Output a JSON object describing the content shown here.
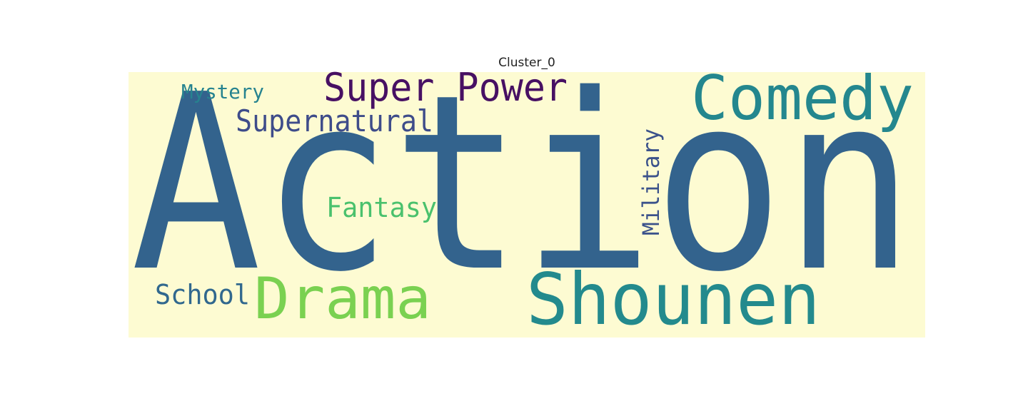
{
  "chart_data": {
    "type": "wordcloud",
    "title": "Cluster_0",
    "background": "#fdfbd2",
    "words": [
      {
        "text": "Action",
        "rank": 1,
        "color": "#33638d",
        "rotate": 0
      },
      {
        "text": "Shounen",
        "rank": 2,
        "color": "#238a8d",
        "rotate": 0
      },
      {
        "text": "Comedy",
        "rank": 3,
        "color": "#24878e",
        "rotate": 0
      },
      {
        "text": "Drama",
        "rank": 4,
        "color": "#7ad151",
        "rotate": 0
      },
      {
        "text": "Super Power",
        "rank": 5,
        "color": "#471063",
        "rotate": 0
      },
      {
        "text": "Supernatural",
        "rank": 6,
        "color": "#3e4c8a",
        "rotate": 0
      },
      {
        "text": "Fantasy",
        "rank": 7,
        "color": "#4ac16d",
        "rotate": 0
      },
      {
        "text": "Military",
        "rank": 8,
        "color": "#3b528b",
        "rotate": -90
      },
      {
        "text": "School",
        "rank": 9,
        "color": "#31688e",
        "rotate": 0
      },
      {
        "text": "Mystery",
        "rank": 10,
        "color": "#26838f",
        "rotate": 0
      }
    ]
  }
}
